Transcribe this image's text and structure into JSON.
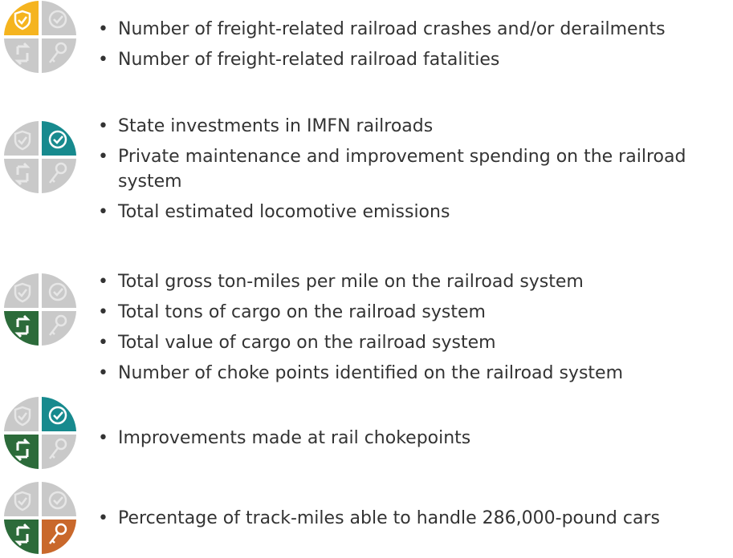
{
  "groups": [
    {
      "items": [
        "Number of freight-related railroad crashes and/or derailments",
        "Number of freight-related railroad fatalities"
      ]
    },
    {
      "items": [
        "State investments in IMFN railroads",
        "Private maintenance and improvement spending on the railroad system",
        "Total estimated locomotive emissions"
      ]
    },
    {
      "items": [
        "Total gross ton-miles per mile on the railroad system",
        "Total tons of cargo on the railroad system",
        "Total value of cargo on the railroad system",
        "Number of choke points identified on the railroad system"
      ]
    },
    {
      "items": [
        "Improvements made at rail chokepoints"
      ]
    },
    {
      "items": [
        "Percentage of track-miles able to handle 286,000-pound cars"
      ]
    }
  ]
}
